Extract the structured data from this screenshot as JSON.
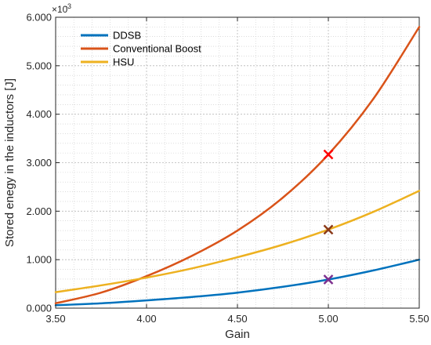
{
  "chart_data": {
    "type": "line",
    "xlabel": "Gain",
    "ylabel": "Stored enegy in the inductors [J]",
    "y_exponent_label": "×10",
    "y_exponent_power": "-3",
    "xlim": [
      3.5,
      5.5
    ],
    "ylim": [
      0,
      6.0
    ],
    "x_ticks": [
      "3.50",
      "4.00",
      "4.50",
      "5.00",
      "5.50"
    ],
    "y_ticks": [
      "0.000",
      "1.000",
      "2.000",
      "3.000",
      "4.000",
      "5.000",
      "6.000"
    ],
    "grid": true,
    "minor_grid": true,
    "legend_position": "top-left",
    "x": [
      3.5,
      3.75,
      4.0,
      4.25,
      4.5,
      4.75,
      5.0,
      5.25,
      5.5
    ],
    "series": [
      {
        "name": "DDSB",
        "color": "#0072BD",
        "values": [
          0.06,
          0.1,
          0.16,
          0.23,
          0.32,
          0.44,
          0.59,
          0.78,
          1.0
        ]
      },
      {
        "name": "Conventional Boost",
        "color": "#D95319",
        "values": [
          0.1,
          0.32,
          0.66,
          1.08,
          1.6,
          2.28,
          3.17,
          4.33,
          5.8
        ]
      },
      {
        "name": "HSU",
        "color": "#EDB120",
        "values": [
          0.33,
          0.47,
          0.63,
          0.82,
          1.05,
          1.31,
          1.62,
          1.99,
          2.42
        ]
      }
    ],
    "markers": [
      {
        "series": "DDSB",
        "x": 5.0,
        "y": 0.59,
        "color": "#7E2F8E"
      },
      {
        "series": "Conventional Boost",
        "x": 5.0,
        "y": 3.17,
        "color": "#FF0000"
      },
      {
        "series": "HSU",
        "x": 5.0,
        "y": 1.62,
        "color": "#8B3A1A"
      }
    ]
  }
}
